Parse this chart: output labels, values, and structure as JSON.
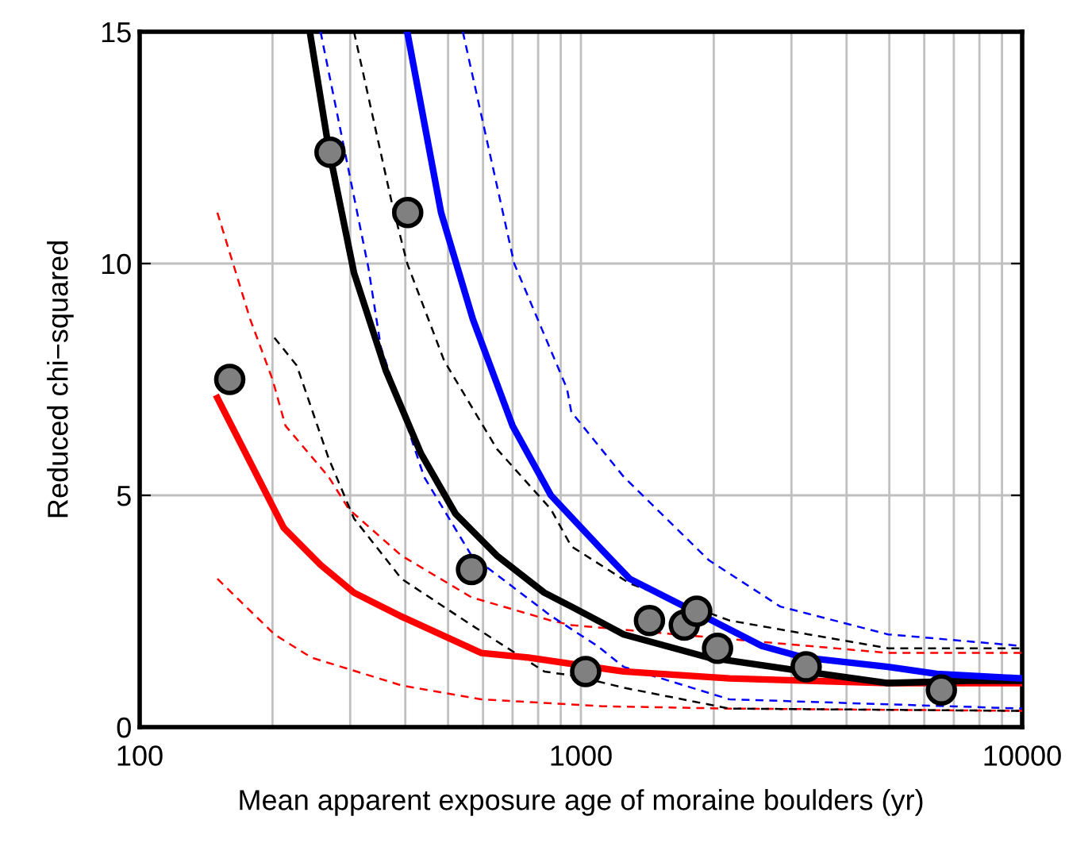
{
  "chart_data": {
    "type": "line",
    "xlabel": "Mean apparent exposure age of moraine boulders (yr)",
    "ylabel": "Reduced chi−squared",
    "log": "x",
    "grid": true,
    "xlim": [
      100,
      10000
    ],
    "ylim": [
      0,
      15
    ],
    "xticks": [
      100,
      {
        "value": 200,
        "label": null
      },
      {
        "value": 300,
        "label": null
      },
      {
        "value": 400,
        "label": null
      },
      {
        "value": 500,
        "label": null
      },
      {
        "value": 600,
        "label": null
      },
      {
        "value": 700,
        "label": null
      },
      {
        "value": 800,
        "label": null
      },
      {
        "value": 900,
        "label": null
      },
      1000,
      {
        "value": 2000,
        "label": null
      },
      {
        "value": 3000,
        "label": null
      },
      {
        "value": 4000,
        "label": null
      },
      {
        "value": 5000,
        "label": null
      },
      {
        "value": 6000,
        "label": null
      },
      {
        "value": 7000,
        "label": null
      },
      {
        "value": 8000,
        "label": null
      },
      {
        "value": 9000,
        "label": null
      },
      10000
    ],
    "yticks": [
      0,
      5,
      10,
      15
    ],
    "series": [
      {
        "line_style": "dashed",
        "color": "#ff0000",
        "x": [
          150,
          178,
          200,
          214,
          268,
          298,
          392,
          565,
          855,
          951,
          2170,
          4970,
          10000
        ],
        "values": [
          11.1,
          8.8,
          7.5,
          6.5,
          5.4,
          4.7,
          3.7,
          2.8,
          2.3,
          2.2,
          1.9,
          1.6,
          1.6
        ]
      },
      {
        "line_style": "dashed",
        "color": "#ff0000",
        "x": [
          150,
          202,
          245,
          392,
          594,
          1122,
          2170,
          10000
        ],
        "values": [
          3.2,
          2.0,
          1.5,
          0.9,
          0.6,
          0.45,
          0.4,
          0.35
        ]
      },
      {
        "line_style": "dashed",
        "color": "#000000",
        "x": [
          306,
          373,
          404,
          490,
          645,
          855,
          951,
          1290,
          2170,
          4970,
          10000
        ],
        "values": [
          15,
          11.3,
          10.0,
          7.9,
          6.0,
          4.7,
          3.9,
          3.1,
          2.3,
          1.7,
          1.7
        ]
      },
      {
        "line_style": "dashed",
        "color": "#000000",
        "x": [
          202,
          227,
          268,
          306,
          392,
          565,
          826,
          975,
          1250,
          2170,
          10000
        ],
        "values": [
          8.4,
          7.8,
          5.8,
          4.5,
          3.2,
          2.2,
          1.2,
          1.1,
          0.85,
          0.4,
          0.35
        ]
      },
      {
        "line_style": "dashed",
        "color": "#0000ff",
        "x": [
          540,
          706,
          930,
          951,
          1250,
          1950,
          2830,
          4970,
          10000
        ],
        "values": [
          15,
          10.0,
          7.3,
          6.8,
          5.4,
          3.6,
          2.6,
          2.0,
          1.75
        ]
      },
      {
        "line_style": "dashed",
        "color": "#0000ff",
        "x": [
          257,
          330,
          352,
          441,
          565,
          855,
          1090,
          1250,
          2170,
          10000
        ],
        "values": [
          15,
          9.9,
          8.2,
          5.4,
          3.7,
          2.4,
          1.75,
          1.3,
          0.6,
          0.4
        ]
      },
      {
        "line_style": "solid",
        "color": "#ff0000",
        "x": [
          150,
          212,
          257,
          306,
          389,
          594,
          760,
          1250,
          2170,
          4970,
          10000
        ],
        "values": [
          7.1,
          4.3,
          3.5,
          2.9,
          2.4,
          1.6,
          1.5,
          1.2,
          1.05,
          0.95,
          0.95
        ]
      },
      {
        "line_style": "solid",
        "color": "#000000",
        "x": [
          243,
          268,
          306,
          361,
          434,
          520,
          645,
          826,
          951,
          1250,
          1950,
          3210,
          4970,
          7550,
          10000
        ],
        "values": [
          15,
          12.5,
          9.8,
          7.7,
          5.9,
          4.6,
          3.7,
          2.9,
          2.6,
          2.0,
          1.5,
          1.2,
          0.95,
          1.0,
          1.0
        ]
      },
      {
        "line_style": "solid",
        "color": "#0000ff",
        "x": [
          404,
          482,
          569,
          700,
          855,
          1122,
          1290,
          1890,
          2570,
          3210,
          4970,
          6400,
          10000
        ],
        "values": [
          15,
          11.1,
          8.8,
          6.5,
          5.0,
          3.8,
          3.2,
          2.4,
          1.75,
          1.5,
          1.3,
          1.15,
          1.05
        ]
      },
      {
        "type": "scatter",
        "marker": "circle",
        "color": "#808080",
        "x": [
          160,
          270,
          405,
          565,
          1025,
          1430,
          1715,
          1830,
          2040,
          3240,
          6560
        ],
        "values": [
          7.5,
          12.4,
          11.1,
          3.4,
          1.2,
          2.3,
          2.2,
          2.5,
          1.7,
          1.3,
          0.8
        ]
      }
    ]
  }
}
